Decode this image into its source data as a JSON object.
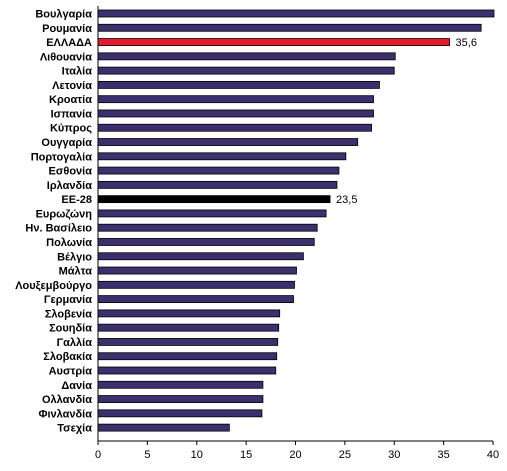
{
  "chart_data": {
    "type": "bar",
    "orientation": "horizontal",
    "categories": [
      "Βουλγαρία",
      "Ρουμανία",
      "ΕΛΛΑΔΑ",
      "Λιθουανία",
      "Ιταλία",
      "Λετονία",
      "Κροατία",
      "Ισπανία",
      "Κύπρος",
      "Ουγγαρία",
      "Πορτογαλία",
      "Εσθονία",
      "Ιρλανδία",
      "ΕΕ-28",
      "Ευρωζώνη",
      "Ην. Βασίλειο",
      "Πολωνία",
      "Βέλγιο",
      "Μάλτα",
      "Λουξεμβούργο",
      "Γερμανία",
      "Σλοβενία",
      "Σουηδία",
      "Γαλλία",
      "Σλοβακία",
      "Αυστρία",
      "Δανία",
      "Ολλανδία",
      "Φινλανδία",
      "Τσεχία"
    ],
    "values": [
      40.1,
      38.8,
      35.6,
      30.1,
      30.0,
      28.5,
      27.9,
      27.9,
      27.7,
      26.3,
      25.1,
      24.4,
      24.2,
      23.5,
      23.1,
      22.2,
      21.9,
      20.8,
      20.1,
      19.9,
      19.8,
      18.4,
      18.3,
      18.2,
      18.1,
      18.0,
      16.7,
      16.7,
      16.6,
      13.3
    ],
    "data_labels": {
      "ΕΛΛΑΔΑ": "35,6",
      "ΕΕ-28": "23,5"
    },
    "highlight": {
      "ΕΛΛΑΔΑ": "#e8192c",
      "ΕΕ-28": "#000000"
    },
    "bar_color": "#3c2f6e",
    "xlim": [
      0,
      40
    ],
    "xticks": [
      0,
      5,
      10,
      15,
      20,
      25,
      30,
      35,
      40
    ],
    "tick_labels": [
      "0",
      "5",
      "10",
      "15",
      "20",
      "25",
      "30",
      "35",
      "40"
    ],
    "grid": false,
    "title": "",
    "xlabel": "",
    "ylabel": ""
  }
}
